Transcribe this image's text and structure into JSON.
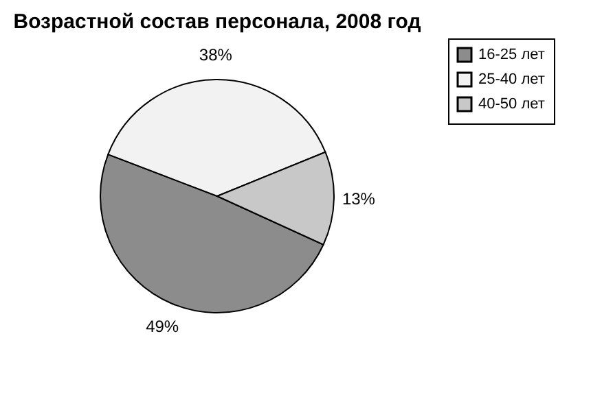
{
  "chart_data": {
    "type": "pie",
    "title": "Возрастной состав персонала, 2008 год",
    "categories": [
      "16-25 лет",
      "25-40 лет",
      "40-50 лет"
    ],
    "values": [
      49,
      38,
      13
    ],
    "value_labels": [
      "49%",
      "38%",
      "13%"
    ],
    "colors": [
      "#8c8c8c",
      "#f2f2f2",
      "#c8c8c8"
    ],
    "legend": "right"
  }
}
